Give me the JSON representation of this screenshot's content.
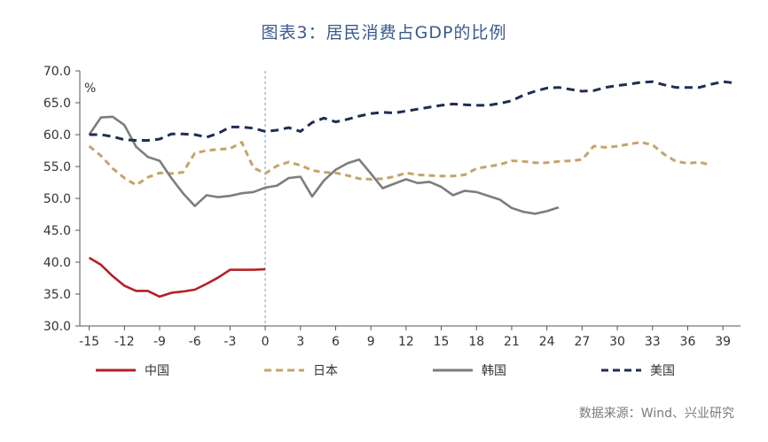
{
  "chart_data": {
    "type": "line",
    "title": "图表3：居民消费占GDP的比例",
    "unit_label": "%",
    "source": "数据来源：Wind、兴业研究",
    "xlim": [
      -15,
      39
    ],
    "xticks": [
      -15,
      -12,
      -9,
      -6,
      -3,
      0,
      3,
      6,
      9,
      12,
      15,
      18,
      21,
      24,
      27,
      30,
      33,
      36,
      39
    ],
    "xtick_labels": [
      "-15",
      "-12",
      "-9",
      "-6",
      "-3",
      "0",
      "3",
      "6",
      "9",
      "12",
      "15",
      "18",
      "21",
      "24",
      "27",
      "30",
      "33",
      "36",
      "39"
    ],
    "ylim": [
      30,
      70
    ],
    "yticks": [
      30,
      35,
      40,
      45,
      50,
      55,
      60,
      65,
      70
    ],
    "ytick_labels": [
      "30.0",
      "35.0",
      "40.0",
      "45.0",
      "50.0",
      "55.0",
      "60.0",
      "65.0",
      "70.0"
    ],
    "reference_line_x": 0,
    "grid": false,
    "legend_position": "bottom",
    "series": [
      {
        "name": "中国",
        "color": "#b52025",
        "style": "solid",
        "x": [
          -15,
          -14,
          -13,
          -12,
          -11,
          -10,
          -9,
          -8,
          -7,
          -6,
          -5,
          -4,
          -3,
          -2,
          -1,
          0
        ],
        "y": [
          40.7,
          39.6,
          37.8,
          36.3,
          35.5,
          35.5,
          34.6,
          35.2,
          35.4,
          35.7,
          36.6,
          37.6,
          38.8,
          38.8,
          38.8,
          38.9
        ]
      },
      {
        "name": "日本",
        "color": "#c4a46a",
        "style": "dashed",
        "x": [
          -15,
          -14,
          -13,
          -12,
          -11,
          -10,
          -9,
          -8,
          -7,
          -6,
          -5,
          -4,
          -3,
          -2,
          -1,
          0,
          1,
          2,
          3,
          4,
          5,
          6,
          7,
          8,
          9,
          10,
          11,
          12,
          13,
          14,
          15,
          16,
          17,
          18,
          19,
          20,
          21,
          22,
          23,
          24,
          25,
          26,
          27,
          28,
          29,
          30,
          31,
          32,
          33,
          34,
          35,
          36,
          37,
          38
        ],
        "y": [
          58.2,
          56.7,
          54.7,
          53.2,
          52.1,
          53.3,
          54.0,
          53.9,
          54.1,
          57.1,
          57.5,
          57.7,
          57.8,
          58.8,
          54.8,
          53.9,
          55.1,
          55.7,
          55.2,
          54.4,
          54.1,
          54.0,
          53.6,
          53.1,
          53.0,
          53.1,
          53.4,
          54.0,
          53.7,
          53.6,
          53.5,
          53.5,
          53.7,
          54.7,
          55.0,
          55.3,
          55.9,
          55.8,
          55.6,
          55.6,
          55.8,
          55.9,
          56.1,
          58.2,
          58.0,
          58.2,
          58.5,
          58.8,
          58.4,
          56.9,
          55.8,
          55.5,
          55.7,
          55.2
        ]
      },
      {
        "name": "韩国",
        "color": "#7d7d7d",
        "style": "solid",
        "x": [
          -15,
          -14,
          -13,
          -12,
          -11,
          -10,
          -9,
          -8,
          -7,
          -6,
          -5,
          -4,
          -3,
          -2,
          -1,
          0,
          1,
          2,
          3,
          4,
          5,
          6,
          7,
          8,
          9,
          10,
          11,
          12,
          13,
          14,
          15,
          16,
          17,
          18,
          19,
          20,
          21,
          22,
          23,
          24,
          25
        ],
        "y": [
          60.0,
          62.7,
          62.8,
          61.5,
          58.1,
          56.5,
          55.9,
          53.2,
          50.8,
          48.8,
          50.5,
          50.2,
          50.4,
          50.8,
          51.0,
          51.7,
          52.0,
          53.2,
          53.4,
          50.3,
          52.8,
          54.5,
          55.5,
          56.1,
          53.9,
          51.6,
          52.3,
          53.0,
          52.4,
          52.6,
          51.8,
          50.5,
          51.2,
          51.0,
          50.4,
          49.8,
          48.5,
          47.9,
          47.6,
          48.0,
          48.6
        ]
      },
      {
        "name": "美国",
        "color": "#1f2d55",
        "style": "dashed",
        "x": [
          -15,
          -14,
          -13,
          -12,
          -11,
          -10,
          -9,
          -8,
          -7,
          -6,
          -5,
          -4,
          -3,
          -2,
          -1,
          0,
          1,
          2,
          3,
          4,
          5,
          6,
          7,
          8,
          9,
          10,
          11,
          12,
          13,
          14,
          15,
          16,
          17,
          18,
          19,
          20,
          21,
          22,
          23,
          24,
          25,
          26,
          27,
          28,
          29,
          30,
          31,
          32,
          33,
          34,
          35,
          36,
          37,
          38,
          39,
          40
        ],
        "y": [
          60.0,
          60.0,
          59.7,
          59.2,
          59.1,
          59.1,
          59.3,
          60.1,
          60.1,
          60.0,
          59.6,
          60.2,
          61.2,
          61.2,
          61.0,
          60.5,
          60.7,
          61.1,
          60.5,
          61.9,
          62.6,
          62.0,
          62.4,
          62.9,
          63.3,
          63.5,
          63.4,
          63.7,
          64.0,
          64.3,
          64.6,
          64.8,
          64.7,
          64.6,
          64.6,
          64.9,
          65.3,
          66.2,
          66.8,
          67.3,
          67.4,
          67.1,
          66.8,
          66.9,
          67.4,
          67.7,
          67.9,
          68.2,
          68.3,
          67.8,
          67.4,
          67.4,
          67.4,
          67.9,
          68.3,
          68.1
        ]
      }
    ]
  }
}
